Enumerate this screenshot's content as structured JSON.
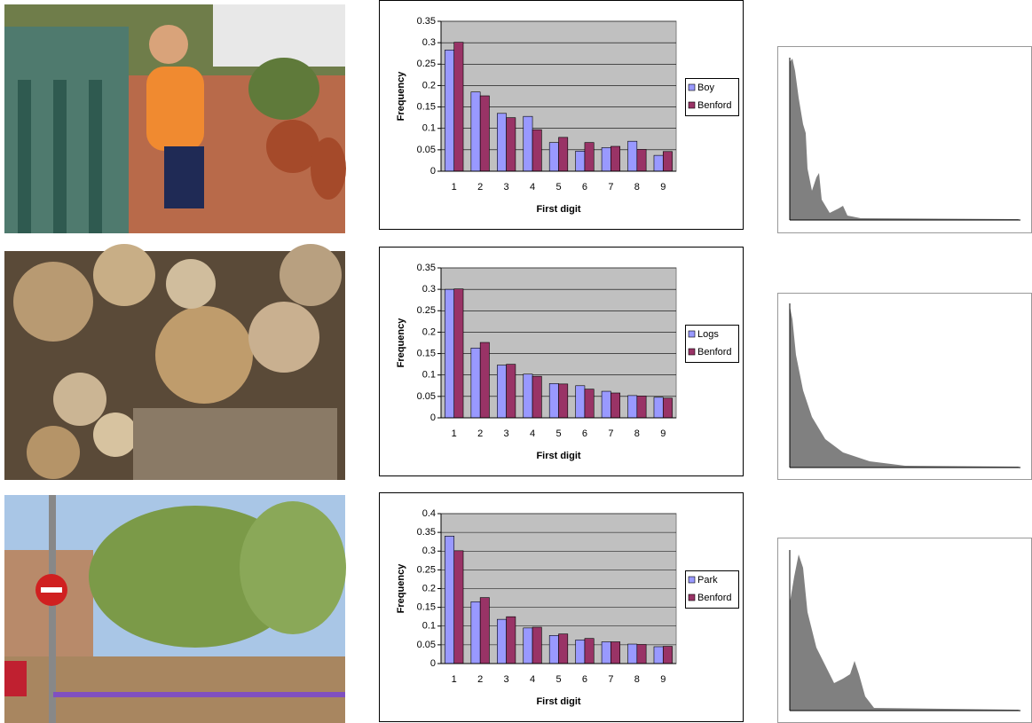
{
  "chart_data": [
    {
      "type": "bar",
      "x_label": "First digit",
      "y_label": "Frequency",
      "categories": [
        "1",
        "2",
        "3",
        "4",
        "5",
        "6",
        "7",
        "8",
        "9"
      ],
      "series": [
        {
          "name": "Boy",
          "color": "#9999ff",
          "values": [
            0.283,
            0.185,
            0.135,
            0.128,
            0.067,
            0.047,
            0.055,
            0.07,
            0.037
          ]
        },
        {
          "name": "Benford",
          "color": "#993366",
          "values": [
            0.301,
            0.176,
            0.125,
            0.097,
            0.079,
            0.067,
            0.058,
            0.051,
            0.046
          ]
        }
      ],
      "ylim": [
        0,
        0.35
      ],
      "yticks": [
        0,
        0.05,
        0.1,
        0.15,
        0.2,
        0.25,
        0.3,
        0.35
      ],
      "grid": true
    },
    {
      "type": "bar",
      "x_label": "First digit",
      "y_label": "Frequency",
      "categories": [
        "1",
        "2",
        "3",
        "4",
        "5",
        "6",
        "7",
        "8",
        "9"
      ],
      "series": [
        {
          "name": "Logs",
          "color": "#9999ff",
          "values": [
            0.3,
            0.163,
            0.123,
            0.102,
            0.08,
            0.075,
            0.062,
            0.052,
            0.048
          ]
        },
        {
          "name": "Benford",
          "color": "#993366",
          "values": [
            0.301,
            0.176,
            0.125,
            0.097,
            0.079,
            0.067,
            0.058,
            0.051,
            0.046
          ]
        }
      ],
      "ylim": [
        0,
        0.35
      ],
      "yticks": [
        0,
        0.05,
        0.1,
        0.15,
        0.2,
        0.25,
        0.3,
        0.35
      ],
      "grid": true
    },
    {
      "type": "bar",
      "x_label": "First digit",
      "y_label": "Frequency",
      "categories": [
        "1",
        "2",
        "3",
        "4",
        "5",
        "6",
        "7",
        "8",
        "9"
      ],
      "series": [
        {
          "name": "Park",
          "color": "#9999ff",
          "values": [
            0.34,
            0.165,
            0.118,
            0.095,
            0.075,
            0.063,
            0.058,
            0.052,
            0.045
          ]
        },
        {
          "name": "Benford",
          "color": "#993366",
          "values": [
            0.301,
            0.176,
            0.125,
            0.097,
            0.079,
            0.067,
            0.058,
            0.051,
            0.046
          ]
        }
      ],
      "ylim": [
        0,
        0.4
      ],
      "yticks": [
        0,
        0.05,
        0.1,
        0.15,
        0.2,
        0.25,
        0.3,
        0.35,
        0.4
      ],
      "grid": true
    }
  ]
}
